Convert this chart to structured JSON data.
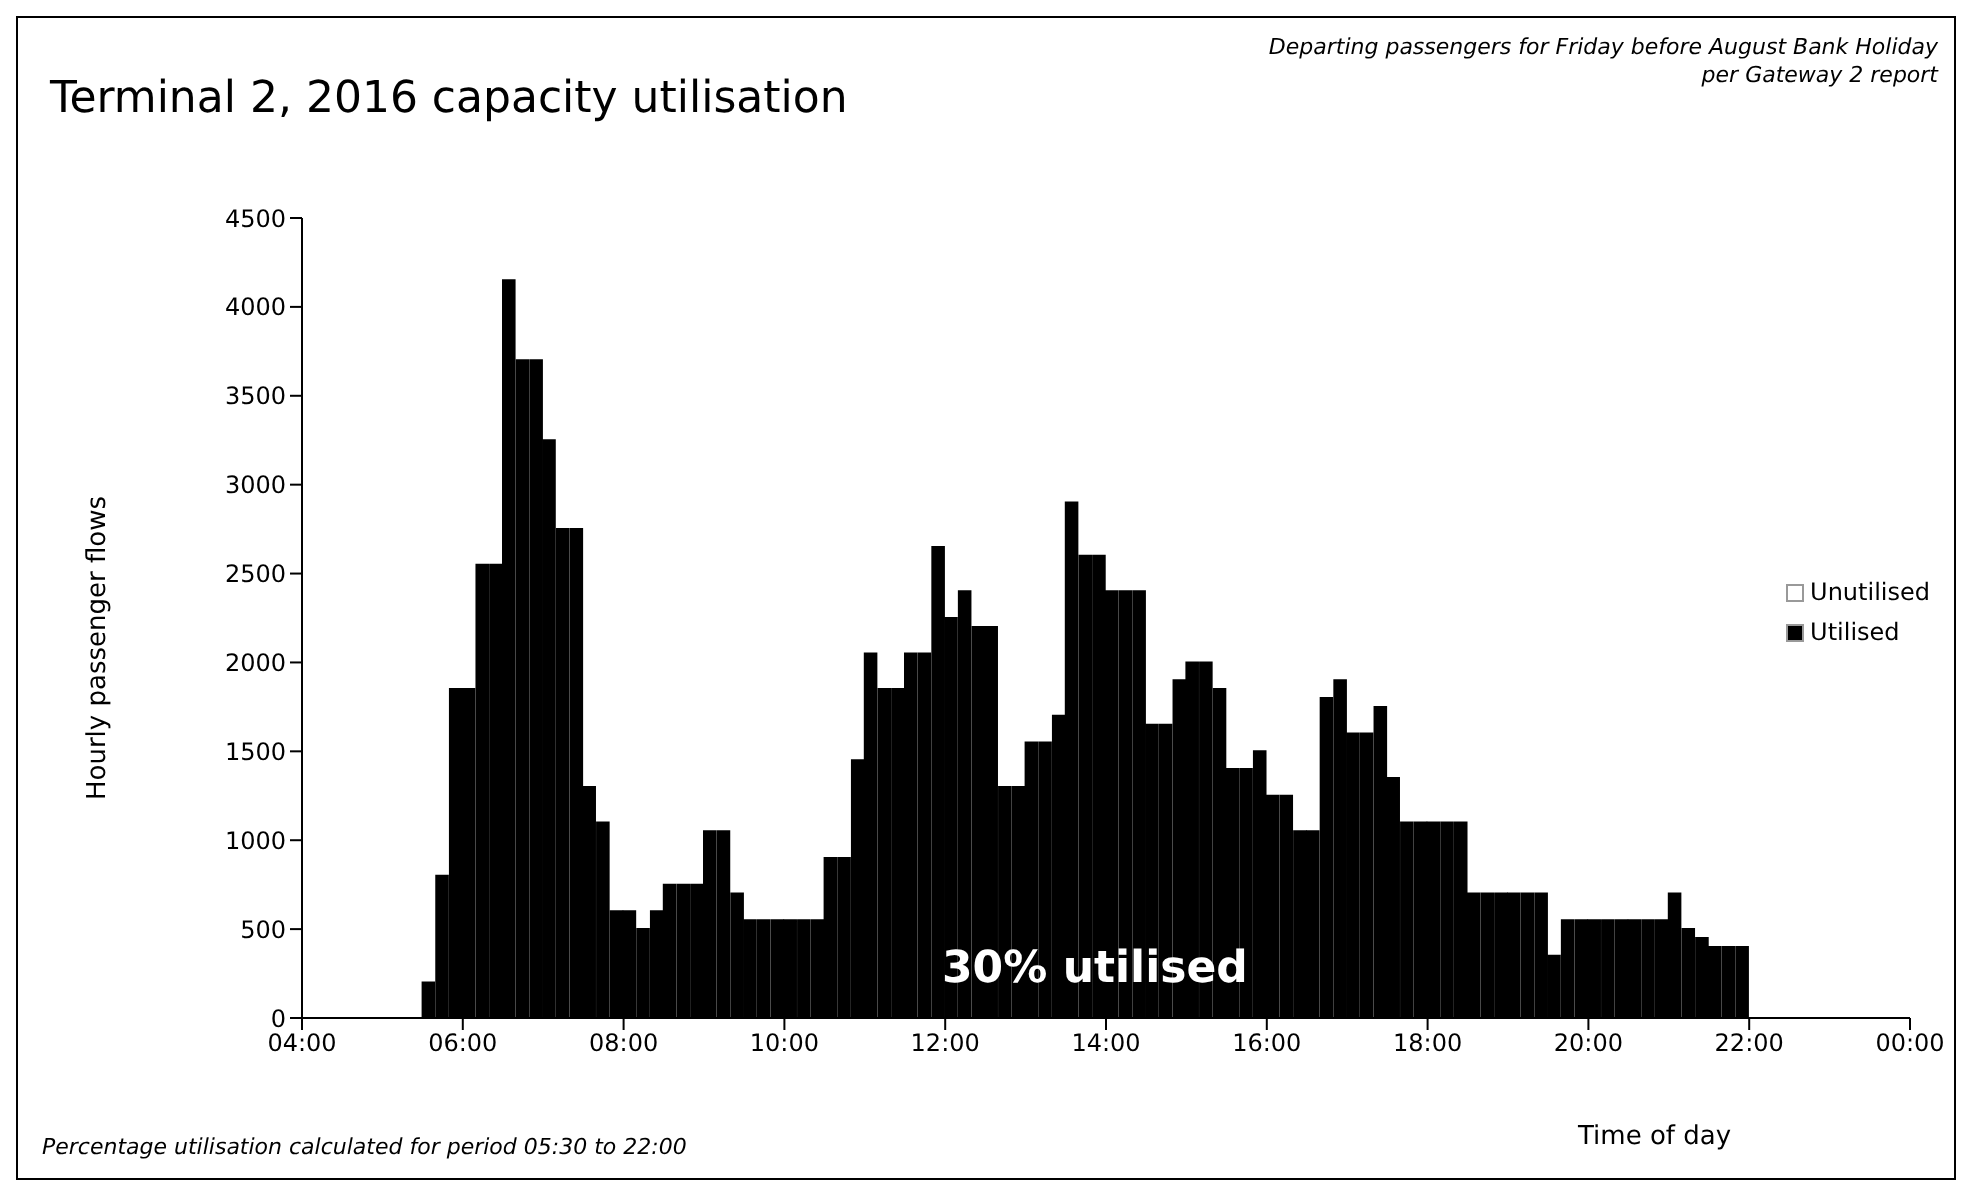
{
  "chart_data": {
    "type": "bar",
    "title": "Terminal 2, 2016 capacity utilisation",
    "subtitle": "Departing passengers for Friday before August Bank Holiday per Gateway 2 report",
    "xlabel": "Time of day",
    "ylabel": "Hourly passenger flows",
    "annotations": [
      "30% utilised",
      "Percentage utilisation calculated for period 05:30 to 22:00"
    ],
    "stacked": true,
    "legend": "right",
    "x": [
      5.58,
      5.75,
      5.92,
      6.08,
      6.25,
      6.42,
      6.58,
      6.75,
      6.92,
      7.08,
      7.25,
      7.42,
      7.58,
      7.75,
      7.92,
      8.08,
      8.25,
      8.42,
      8.58,
      8.75,
      8.92,
      9.08,
      9.25,
      9.42,
      9.58,
      9.75,
      9.92,
      10.08,
      10.25,
      10.42,
      10.58,
      10.75,
      10.92,
      11.08,
      11.25,
      11.42,
      11.58,
      11.75,
      11.92,
      12.08,
      12.25,
      12.42,
      12.58,
      12.75,
      12.92,
      13.08,
      13.25,
      13.42,
      13.58,
      13.75,
      13.92,
      14.08,
      14.25,
      14.42,
      14.58,
      14.75,
      14.92,
      15.08,
      15.25,
      15.42,
      15.58,
      15.75,
      15.92,
      16.08,
      16.25,
      16.42,
      16.58,
      16.75,
      16.92,
      17.08,
      17.25,
      17.42,
      17.58,
      17.75,
      17.92,
      18.08,
      18.25,
      18.42,
      18.58,
      18.75,
      18.92,
      19.08,
      19.25,
      19.42,
      19.58,
      19.75,
      19.92,
      20.08,
      20.25,
      20.42,
      20.58,
      20.75,
      20.92,
      21.08,
      21.25,
      21.42,
      21.58,
      21.75,
      21.92
    ],
    "series": [
      {
        "name": "Utilised",
        "color": "#000000",
        "values": [
          200,
          800,
          1850,
          1850,
          2550,
          2550,
          4150,
          3700,
          3700,
          3250,
          2750,
          2750,
          1300,
          1100,
          600,
          600,
          500,
          600,
          750,
          750,
          750,
          1050,
          1050,
          700,
          550,
          550,
          550,
          550,
          550,
          550,
          900,
          900,
          1450,
          2050,
          1850,
          1850,
          2050,
          2050,
          2650,
          2250,
          2400,
          2200,
          2200,
          1300,
          1300,
          1550,
          1550,
          1700,
          2900,
          2600,
          2600,
          2400,
          2400,
          2400,
          1650,
          1650,
          1900,
          2000,
          2000,
          1850,
          1400,
          1400,
          1500,
          1250,
          1250,
          1050,
          1050,
          1800,
          1900,
          1600,
          1600,
          1750,
          1350,
          1100,
          1100,
          1100,
          1100,
          1100,
          700,
          700,
          700,
          700,
          700,
          700,
          350,
          550,
          550,
          550,
          550,
          550,
          550,
          550,
          550,
          700,
          500,
          450,
          400,
          400,
          400
        ]
      },
      {
        "name": "Unutilised",
        "color": "#ffffff",
        "values": [
          null,
          null,
          null,
          null,
          null,
          null,
          null,
          null,
          null,
          null,
          null,
          null,
          null,
          null,
          null,
          null,
          null,
          null,
          null,
          null,
          null,
          null,
          null,
          null,
          null,
          null,
          null,
          null,
          null,
          null,
          null,
          null,
          null,
          null,
          null,
          null,
          null,
          null,
          null,
          null,
          null,
          null,
          null,
          null,
          null,
          null,
          null,
          null,
          null,
          null,
          null,
          null,
          null,
          null,
          null,
          null,
          null,
          null,
          null,
          null,
          null,
          null,
          null,
          null,
          null,
          null,
          null,
          null,
          null,
          null,
          null,
          null,
          null,
          null,
          null,
          null,
          null,
          null,
          null,
          null,
          null,
          null,
          null,
          null,
          null,
          null,
          null,
          null,
          null,
          null,
          null,
          null,
          null,
          null,
          null,
          null,
          null,
          null,
          null
        ]
      }
    ],
    "xlim": [
      4,
      24
    ],
    "xticks": [
      {
        "value": 4,
        "label": "04:00"
      },
      {
        "value": 6,
        "label": "06:00"
      },
      {
        "value": 8,
        "label": "08:00"
      },
      {
        "value": 10,
        "label": "10:00"
      },
      {
        "value": 12,
        "label": "12:00"
      },
      {
        "value": 14,
        "label": "14:00"
      },
      {
        "value": 16,
        "label": "16:00"
      },
      {
        "value": 18,
        "label": "18:00"
      },
      {
        "value": 20,
        "label": "20:00"
      },
      {
        "value": 22,
        "label": "22:00"
      },
      {
        "value": 24,
        "label": "00:00"
      }
    ],
    "ylim": [
      0,
      4500
    ],
    "yticks": [
      0,
      500,
      1000,
      1500,
      2000,
      2500,
      3000,
      3500,
      4000,
      4500
    ]
  }
}
